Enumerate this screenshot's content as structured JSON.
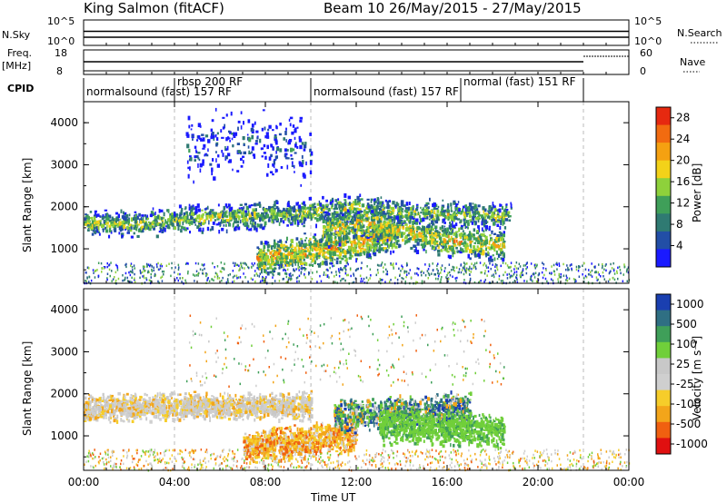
{
  "header": {
    "title_left": "King Salmon (fitACF)",
    "title_right": "Beam 10 26/May/2015 - 27/May/2015"
  },
  "status_strip": {
    "left_labels": {
      "nsky": "N.Sky",
      "freq": "Freq.",
      "freq_unit": "[MHz]",
      "cpid": "CPID"
    },
    "right_labels": {
      "nsearch": "N.Search",
      "nave": "Nave"
    },
    "nsky_ticks": [
      "10^5",
      "10^0"
    ],
    "nsearch_ticks": [
      "10^5",
      "10^0"
    ],
    "freq_ticks": [
      "18",
      "8"
    ],
    "nave_ticks": [
      "60",
      "0"
    ],
    "cpid_segments": [
      {
        "label": "normalsound (fast) 157 RF",
        "start_hour": 0,
        "end_hour": 4.0
      },
      {
        "label": "rbsp 200 RF",
        "start_hour": 4.0,
        "end_hour": 10.0
      },
      {
        "label": "normalsound (fast) 157 RF",
        "start_hour": 10.0,
        "end_hour": 16.6
      },
      {
        "label": "normal (fast) 151 RF",
        "start_hour": 16.6,
        "end_hour": 22.0
      }
    ]
  },
  "chart_data": [
    {
      "type": "heatmap",
      "name": "power",
      "ylabel": "Slant Range [km]",
      "xlabel": "Time UT",
      "ylim": [
        180,
        4500
      ],
      "xlim": [
        0,
        24
      ],
      "yticks": [
        "1000",
        "2000",
        "3000",
        "4000"
      ],
      "xticks": [
        "00:00",
        "04:00",
        "08:00",
        "12:00",
        "16:00",
        "20:00",
        "00:00"
      ],
      "colorbar_label": "Power [dB]",
      "colorbar_ticks": [
        "4",
        "8",
        "12",
        "16",
        "20",
        "24",
        "28"
      ],
      "colorbar_range": [
        0,
        30
      ],
      "colors": [
        "#1a1aff",
        "#224ea6",
        "#2f7a72",
        "#3f9f59",
        "#8ed13b",
        "#f3d219",
        "#f5a111",
        "#f26b10",
        "#e62910"
      ],
      "features": [
        {
          "region": "main band",
          "start_hour": 0,
          "end_hour": 18.8,
          "center_km": [
            1650,
            1620,
            1750,
            1800,
            1880,
            2000,
            1900,
            1850,
            1800
          ],
          "power_db": 14
        },
        {
          "region": "near band",
          "start_hour": 7.6,
          "end_hour": 13.8,
          "center_km": [
            800,
            950,
            1150,
            1400
          ],
          "power_db": 20
        },
        {
          "region": "bursts",
          "start_hour": 10.5,
          "end_hour": 18.5,
          "center_km": [
            1500,
            1650,
            1400,
            1200,
            1100
          ],
          "power_db": 18
        },
        {
          "region": "upper scatter",
          "start_hour": 4.5,
          "end_hour": 10,
          "center_km": [
            3400,
            3600,
            3300
          ],
          "power_db": 4
        }
      ]
    },
    {
      "type": "heatmap",
      "name": "velocity",
      "ylabel": "Slant Range [km]",
      "xlabel": "Time UT",
      "ylim": [
        180,
        4500
      ],
      "xlim": [
        0,
        24
      ],
      "yticks": [
        "1000",
        "2000",
        "3000",
        "4000"
      ],
      "xticks": [
        "00:00",
        "04:00",
        "08:00",
        "12:00",
        "16:00",
        "20:00",
        "00:00"
      ],
      "colorbar_label": "Velocity [m s⁻¹]",
      "colorbar_ticks": [
        "1000",
        "500",
        "100",
        "25",
        "-25",
        "-100",
        "-500",
        "-1000"
      ],
      "colorbar_range": [
        -1000,
        1000
      ],
      "colors": [
        "#e01010",
        "#f06010",
        "#f3a51a",
        "#f6cd2a",
        "#cfcfcf",
        "#c8c8c8",
        "#70cf3a",
        "#3f9f59",
        "#2f6f83",
        "#1a3fb0"
      ],
      "features": [
        {
          "region": "main band",
          "start_hour": 0,
          "end_hour": 10,
          "center_km": [
            1700,
            1750
          ],
          "velocity_ms": 0
        },
        {
          "region": "near band",
          "start_hour": 7,
          "end_hour": 12,
          "center_km": [
            750,
            1050
          ],
          "velocity_ms": -100
        },
        {
          "region": "bursts",
          "start_hour": 11,
          "end_hour": 17,
          "center_km": [
            1500,
            1700
          ],
          "velocity_ms": 300
        },
        {
          "region": "green band",
          "start_hour": 13,
          "end_hour": 18.5,
          "center_km": [
            1250,
            1150
          ],
          "velocity_ms": 100
        }
      ]
    }
  ]
}
